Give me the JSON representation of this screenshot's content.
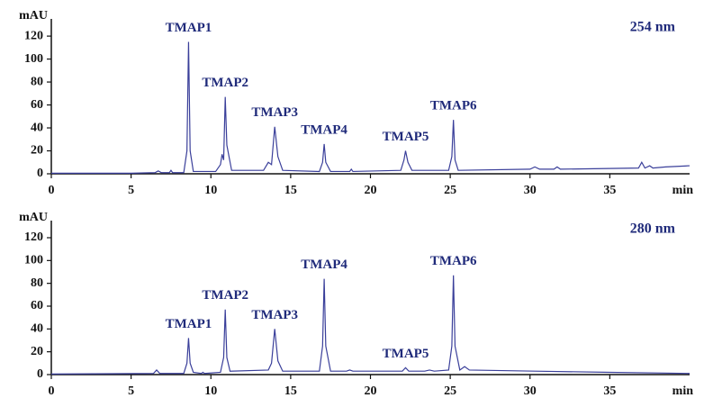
{
  "chart_data": [
    {
      "type": "line",
      "subtitle": "254 nm",
      "y_label": "mAU",
      "x_label": "min",
      "xlim": [
        0,
        40
      ],
      "xticks": [
        0,
        5,
        10,
        15,
        20,
        25,
        30,
        35
      ],
      "ylim": [
        0,
        135
      ],
      "yticks": [
        0,
        20,
        40,
        60,
        80,
        100,
        120
      ],
      "grid": false,
      "color": "#3a3f9a",
      "x": [
        0,
        5,
        6.5,
        6.7,
        6.9,
        7.4,
        7.5,
        7.6,
        8.3,
        8.5,
        8.6,
        8.7,
        8.9,
        10.3,
        10.6,
        10.7,
        10.8,
        10.9,
        11.0,
        11.3,
        13.3,
        13.6,
        13.8,
        14.0,
        14.2,
        14.5,
        16.8,
        17.0,
        17.1,
        17.2,
        17.5,
        18.7,
        18.8,
        18.9,
        21.9,
        22.1,
        22.2,
        22.35,
        22.6,
        24.9,
        25.1,
        25.2,
        25.3,
        25.5,
        30.0,
        30.3,
        30.6,
        31.5,
        31.7,
        31.9,
        36.8,
        37.0,
        37.2,
        37.5,
        37.7,
        38.5,
        40
      ],
      "values": [
        0.5,
        0.5,
        1,
        2.5,
        1,
        1,
        3,
        1,
        1,
        20,
        115,
        20,
        2,
        2,
        8,
        17,
        12,
        67,
        25,
        3,
        3,
        10,
        8,
        41,
        15,
        3,
        2,
        10,
        26,
        10,
        2,
        2,
        4,
        2,
        3,
        12,
        20,
        10,
        3,
        3,
        15,
        47,
        12,
        3,
        4,
        6,
        4,
        4,
        6,
        4,
        5,
        10,
        5,
        7,
        5,
        6,
        7
      ],
      "peaks": [
        {
          "label": "TMAP1",
          "x": 8.6,
          "y": 115
        },
        {
          "label": "TMAP2",
          "x": 10.9,
          "y": 67
        },
        {
          "label": "TMAP3",
          "x": 14.0,
          "y": 41
        },
        {
          "label": "TMAP4",
          "x": 17.1,
          "y": 26
        },
        {
          "label": "TMAP5",
          "x": 22.2,
          "y": 20
        },
        {
          "label": "TMAP6",
          "x": 25.2,
          "y": 47
        }
      ]
    },
    {
      "type": "line",
      "subtitle": "280 nm",
      "y_label": "mAU",
      "x_label": "min",
      "xlim": [
        0,
        40
      ],
      "xticks": [
        0,
        5,
        10,
        15,
        20,
        25,
        30,
        35
      ],
      "ylim": [
        0,
        135
      ],
      "yticks": [
        0,
        20,
        40,
        60,
        80,
        100,
        120
      ],
      "grid": false,
      "color": "#3a3f9a",
      "x": [
        0,
        6.4,
        6.6,
        6.8,
        8.3,
        8.5,
        8.6,
        8.7,
        8.9,
        9.4,
        9.5,
        9.6,
        10.6,
        10.8,
        10.9,
        11.0,
        11.2,
        13.6,
        13.8,
        14.0,
        14.2,
        14.5,
        16.8,
        17.0,
        17.1,
        17.2,
        17.5,
        18.5,
        18.7,
        18.9,
        22.0,
        22.2,
        22.4,
        23.4,
        23.7,
        24.0,
        24.9,
        25.1,
        25.2,
        25.3,
        25.6,
        25.9,
        26.2,
        30.3,
        35,
        40
      ],
      "values": [
        0.5,
        1,
        4,
        1,
        1,
        10,
        32,
        10,
        2,
        1,
        2,
        1,
        2,
        15,
        57,
        15,
        3,
        4,
        10,
        40,
        12,
        3,
        3,
        25,
        84,
        25,
        3,
        3,
        4,
        3,
        3,
        6,
        3,
        3,
        4,
        3,
        4,
        25,
        87,
        25,
        4,
        7,
        4,
        3,
        2,
        1
      ],
      "peaks": [
        {
          "label": "TMAP1",
          "x": 8.6,
          "y": 32
        },
        {
          "label": "TMAP2",
          "x": 10.9,
          "y": 57
        },
        {
          "label": "TMAP3",
          "x": 14.0,
          "y": 40
        },
        {
          "label": "TMAP4",
          "x": 17.1,
          "y": 84
        },
        {
          "label": "TMAP5",
          "x": 22.2,
          "y": 6
        },
        {
          "label": "TMAP6",
          "x": 25.2,
          "y": 87
        }
      ]
    }
  ]
}
